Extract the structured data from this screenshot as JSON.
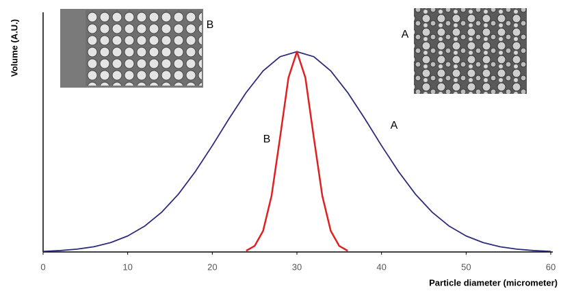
{
  "chart_data": {
    "type": "line",
    "x_label": "Particle diameter (micrometer)",
    "y_label": "Volume (A.U.)",
    "xlim": [
      0,
      60
    ],
    "xticks": [
      0,
      10,
      20,
      30,
      40,
      50,
      60
    ],
    "ylim": [
      0,
      1.2
    ],
    "annotations": [
      "A",
      "A",
      "B",
      "B"
    ],
    "series": [
      {
        "name": "A",
        "color": "#2b2b7a",
        "x": [
          0,
          2,
          4,
          6,
          8,
          10,
          12,
          14,
          16,
          18,
          20,
          22,
          24,
          26,
          28,
          30,
          32,
          34,
          36,
          38,
          40,
          42,
          44,
          46,
          48,
          50,
          52,
          54,
          56,
          58,
          60
        ],
        "values": [
          0.003,
          0.007,
          0.014,
          0.026,
          0.047,
          0.08,
          0.129,
          0.198,
          0.289,
          0.402,
          0.531,
          0.667,
          0.796,
          0.904,
          0.975,
          1,
          0.975,
          0.904,
          0.796,
          0.667,
          0.531,
          0.402,
          0.289,
          0.198,
          0.129,
          0.08,
          0.047,
          0.026,
          0.014,
          0.007,
          0.003
        ]
      },
      {
        "name": "B",
        "color": "#e02020",
        "x": [
          24,
          25,
          26,
          27,
          28,
          29,
          30,
          31,
          32,
          33,
          34,
          35,
          36
        ],
        "values": [
          0.006,
          0.03,
          0.105,
          0.28,
          0.57,
          0.87,
          1,
          0.87,
          0.57,
          0.28,
          0.105,
          0.03,
          0.006
        ]
      }
    ]
  }
}
